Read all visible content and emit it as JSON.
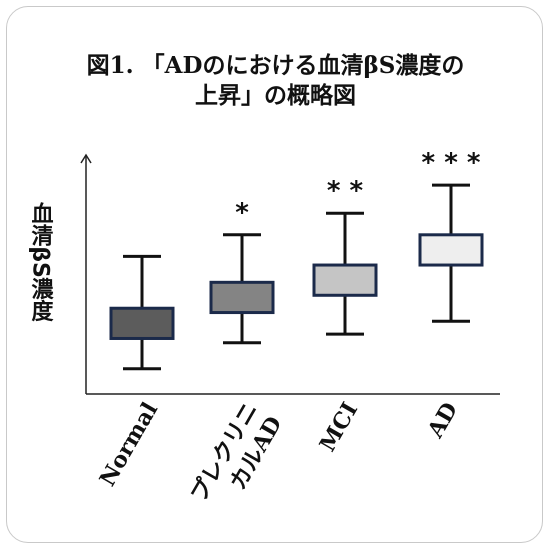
{
  "title_line1": "図1. 「ADのにおける血清βS濃度の",
  "title_line2": "上昇」の概略図",
  "chart_data": {
    "type": "box",
    "title": "図1. 「ADのにおける血清βS濃度の上昇」の概略図",
    "ylabel": "血清βS濃度",
    "xlabel": "",
    "ylim": [
      0,
      100
    ],
    "grid": false,
    "categories": [
      {
        "label_lines": [
          "Normal"
        ]
      },
      {
        "label_lines": [
          "プレクリニ",
          "カルAD"
        ]
      },
      {
        "label_lines": [
          "MCI"
        ]
      },
      {
        "label_lines": [
          "AD"
        ]
      }
    ],
    "boxes": [
      {
        "min": 8,
        "q1": 22,
        "q3": 36,
        "max": 60,
        "significance": "",
        "fill": "#5c5c5c"
      },
      {
        "min": 20,
        "q1": 34,
        "q3": 48,
        "max": 70,
        "significance": "*",
        "fill": "#848484"
      },
      {
        "min": 24,
        "q1": 42,
        "q3": 56,
        "max": 80,
        "significance": "* *",
        "fill": "#c5c5c5"
      },
      {
        "min": 30,
        "q1": 56,
        "q3": 70,
        "max": 93,
        "significance": "* * *",
        "fill": "#eeeeee"
      }
    ]
  }
}
